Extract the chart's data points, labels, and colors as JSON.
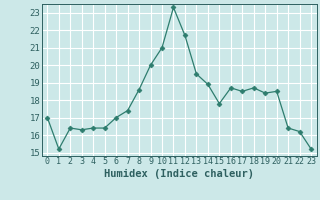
{
  "x": [
    0,
    1,
    2,
    3,
    4,
    5,
    6,
    7,
    8,
    9,
    10,
    11,
    12,
    13,
    14,
    15,
    16,
    17,
    18,
    19,
    20,
    21,
    22,
    23
  ],
  "y": [
    17.0,
    15.2,
    16.4,
    16.3,
    16.4,
    16.4,
    17.0,
    17.4,
    18.6,
    20.0,
    21.0,
    23.3,
    21.7,
    19.5,
    18.9,
    17.8,
    18.7,
    18.5,
    18.7,
    18.4,
    18.5,
    16.4,
    16.2,
    15.2
  ],
  "xlabel": "Humidex (Indice chaleur)",
  "ylim": [
    14.8,
    23.5
  ],
  "xlim": [
    -0.5,
    23.5
  ],
  "yticks": [
    15,
    16,
    17,
    18,
    19,
    20,
    21,
    22,
    23
  ],
  "xticks": [
    0,
    1,
    2,
    3,
    4,
    5,
    6,
    7,
    8,
    9,
    10,
    11,
    12,
    13,
    14,
    15,
    16,
    17,
    18,
    19,
    20,
    21,
    22,
    23
  ],
  "line_color": "#2e7d6e",
  "marker": "D",
  "marker_size": 2.5,
  "bg_color": "#cce8e8",
  "grid_color": "#ffffff",
  "label_color": "#2e6060",
  "xlabel_fontsize": 7.5,
  "tick_fontsize": 6.0,
  "ytick_fontsize": 6.5
}
